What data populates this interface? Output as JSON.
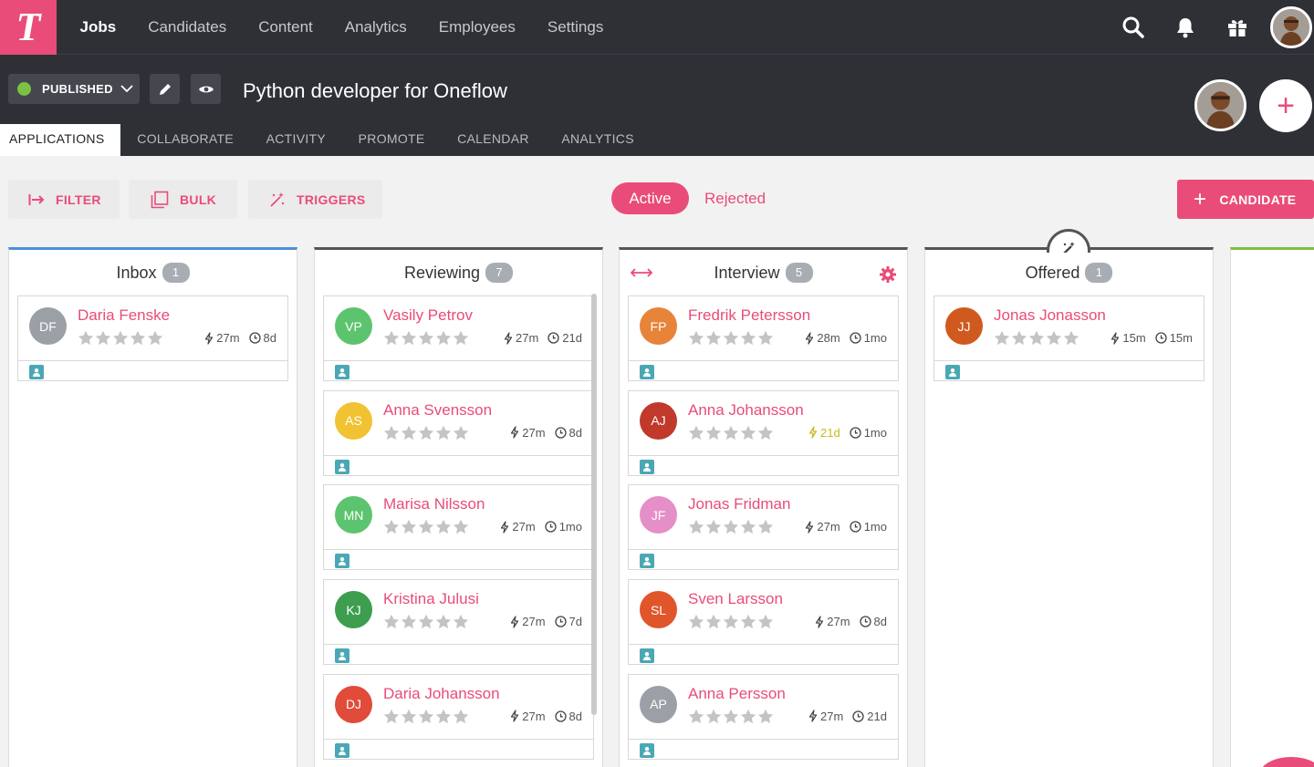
{
  "nav": {
    "logo": "T",
    "links": [
      {
        "label": "Jobs",
        "active": true
      },
      {
        "label": "Candidates",
        "active": false
      },
      {
        "label": "Content",
        "active": false
      },
      {
        "label": "Analytics",
        "active": false
      },
      {
        "label": "Employees",
        "active": false
      },
      {
        "label": "Settings",
        "active": false
      }
    ],
    "icons": [
      "search-icon",
      "bell-icon",
      "gift-icon"
    ]
  },
  "job": {
    "status_label": "PUBLISHED",
    "status_color": "#7bc142",
    "title": "Python developer for Oneflow"
  },
  "tabs": [
    {
      "label": "APPLICATIONS",
      "active": true
    },
    {
      "label": "COLLABORATE",
      "active": false
    },
    {
      "label": "ACTIVITY",
      "active": false
    },
    {
      "label": "PROMOTE",
      "active": false
    },
    {
      "label": "CALENDAR",
      "active": false
    },
    {
      "label": "ANALYTICS",
      "active": false
    }
  ],
  "toolbar": {
    "filter_label": "FILTER",
    "bulk_label": "BULK",
    "triggers_label": "TRIGGERS",
    "active_label": "Active",
    "rejected_label": "Rejected",
    "candidate_label": "CANDIDATE"
  },
  "colors": {
    "accent": "#e94c78",
    "topbar": "#2e3036",
    "profile_badge": "#4aa8b5"
  },
  "columns": [
    {
      "name": "Inbox",
      "count": "1",
      "accent": "#4a90d9",
      "cards": [
        {
          "initials": "DF",
          "name": "Daria Fenske",
          "color": "#9aa0a6",
          "t1": "27m",
          "t2": "8d",
          "rating": 0
        }
      ]
    },
    {
      "name": "Reviewing",
      "count": "7",
      "accent": "#555555",
      "cards": [
        {
          "initials": "VP",
          "name": "Vasily Petrov",
          "color": "#5cc46e",
          "t1": "27m",
          "t2": "21d",
          "rating": 0
        },
        {
          "initials": "AS",
          "name": "Anna Svensson",
          "color": "#f1c232",
          "t1": "27m",
          "t2": "8d",
          "rating": 0
        },
        {
          "initials": "MN",
          "name": "Marisa Nilsson",
          "color": "#5cc46e",
          "t1": "27m",
          "t2": "1mo",
          "rating": 0
        },
        {
          "initials": "KJ",
          "name": "Kristina Julusi",
          "color": "#3d9e4f",
          "t1": "27m",
          "t2": "7d",
          "rating": 0
        },
        {
          "initials": "DJ",
          "name": "Daria Johansson",
          "color": "#e04b3a",
          "t1": "27m",
          "t2": "8d",
          "rating": 0
        }
      ]
    },
    {
      "name": "Interview",
      "count": "5",
      "accent": "#555555",
      "cards": [
        {
          "initials": "FP",
          "name": "Fredrik Petersson",
          "color": "#e8833a",
          "t1": "28m",
          "t2": "1mo",
          "rating": 0
        },
        {
          "initials": "AJ",
          "name": "Anna Johansson",
          "color": "#c0392b",
          "t1": "21d",
          "t2": "1mo",
          "rating": 0,
          "t1_warn": true
        },
        {
          "initials": "JF",
          "name": "Jonas Fridman",
          "color": "#e58fc9",
          "t1": "27m",
          "t2": "1mo",
          "rating": 0
        },
        {
          "initials": "SL",
          "name": "Sven Larsson",
          "color": "#e0552a",
          "t1": "27m",
          "t2": "8d",
          "rating": 0
        },
        {
          "initials": "AP",
          "name": "Anna Persson",
          "color": "#9aa0a6",
          "t1": "27m",
          "t2": "21d",
          "rating": 0
        }
      ]
    },
    {
      "name": "Offered",
      "count": "1",
      "accent": "#555555",
      "cards": [
        {
          "initials": "JJ",
          "name": "Jonas Jonasson",
          "color": "#d05a1e",
          "t1": "15m",
          "t2": "15m",
          "rating": 0
        }
      ]
    },
    {
      "name": "",
      "count": "",
      "accent": "#7bc142",
      "cards": []
    }
  ]
}
